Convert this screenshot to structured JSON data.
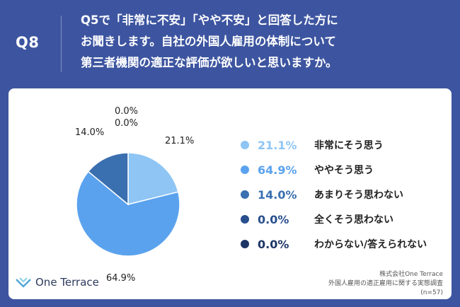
{
  "header": {
    "badge": "Q8",
    "question_lines": [
      "Q5で「非常に不安」「やや不安」と回答した方に",
      "お聞きします。自社の外国人雇用の体制について",
      "第三者機関の適正な評価が欲しいと思いますか。"
    ]
  },
  "chart_data": {
    "type": "pie",
    "categories": [
      "非常にそう思う",
      "ややそう思う",
      "あまりそう思わない",
      "全くそう思わない",
      "わからない/答えられない"
    ],
    "values": [
      21.1,
      64.9,
      14.0,
      0.0,
      0.0
    ],
    "value_labels": [
      "21.1%",
      "64.9%",
      "14.0%",
      "0.0%",
      "0.0%"
    ],
    "colors": [
      "#8ec5f4",
      "#5aa2ee",
      "#3a6fb0",
      "#284f8e",
      "#1d3566"
    ],
    "legend_position": "right"
  },
  "footer": {
    "logo_text": "One Terrace",
    "source_lines": [
      "株式会社One Terrace",
      "外国人雇用の適正雇用に関する実態調査",
      "(n=57)"
    ]
  }
}
